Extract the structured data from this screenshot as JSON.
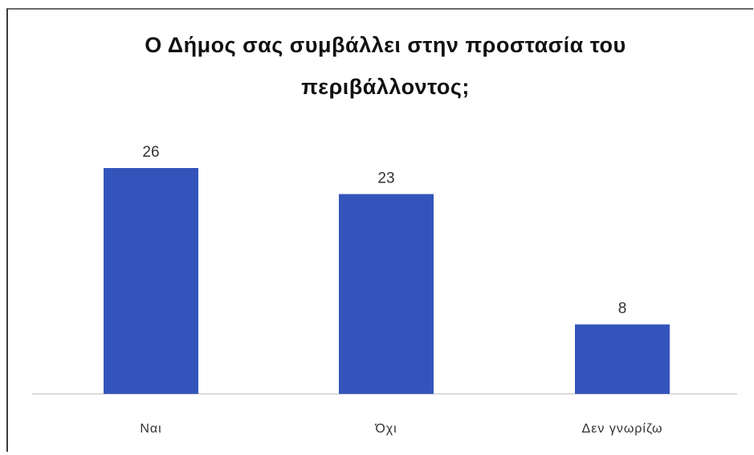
{
  "chart_data": {
    "type": "bar",
    "title": "Ο Δήμος σας συμβάλλει στην προστασία του περιβάλλοντος;",
    "categories": [
      "Ναι",
      "Όχι",
      "Δεν γνωρίζω"
    ],
    "values": [
      26,
      23,
      8
    ],
    "xlabel": "",
    "ylabel": "",
    "ylim": [
      0,
      26
    ],
    "grid": false,
    "legend": "none",
    "bar_color": "#3355bb"
  }
}
